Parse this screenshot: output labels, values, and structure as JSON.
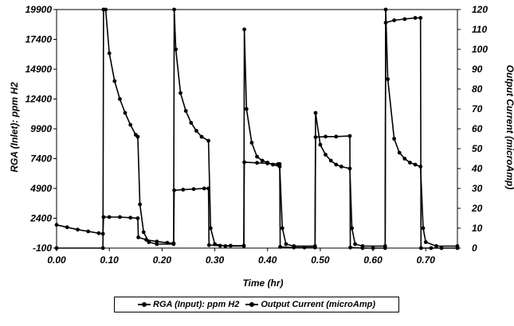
{
  "chart_data": {
    "type": "line",
    "xlabel": "Time (hr)",
    "ylabel": "RGA (Inlet): ppm H2",
    "y2label": "Output Current (microAmp)",
    "xlim": [
      0,
      0.76
    ],
    "ylim": [
      -100,
      19900
    ],
    "y2lim": [
      0,
      120
    ],
    "x_ticks": [
      "0.00",
      "0.10",
      "0.20",
      "0.30",
      "0.40",
      "0.50",
      "0.60",
      "0.70"
    ],
    "y_ticks": [
      "19900",
      "17400",
      "14900",
      "12400",
      "9900",
      "7400",
      "4900",
      "2400",
      "-100"
    ],
    "y2_ticks": [
      "120",
      "110",
      "100",
      "90",
      "80",
      "70",
      "60",
      "50",
      "40",
      "30",
      "20",
      "10",
      "0"
    ],
    "legend_position": "bottom",
    "grid": false,
    "series": [
      {
        "name": "RGA (Input): ppm H2",
        "axis": "left",
        "color": "#000000",
        "points": [
          [
            0.0,
            1850
          ],
          [
            0.02,
            1650
          ],
          [
            0.04,
            1450
          ],
          [
            0.06,
            1300
          ],
          [
            0.08,
            1150
          ],
          [
            0.088,
            1100
          ],
          [
            0.089,
            2500
          ],
          [
            0.1,
            2500
          ],
          [
            0.12,
            2500
          ],
          [
            0.14,
            2450
          ],
          [
            0.154,
            2400
          ],
          [
            0.155,
            800
          ],
          [
            0.17,
            600
          ],
          [
            0.19,
            450
          ],
          [
            0.21,
            350
          ],
          [
            0.222,
            300
          ],
          [
            0.223,
            4750
          ],
          [
            0.24,
            4800
          ],
          [
            0.26,
            4850
          ],
          [
            0.28,
            4900
          ],
          [
            0.288,
            4900
          ],
          [
            0.289,
            150
          ],
          [
            0.31,
            100
          ],
          [
            0.33,
            100
          ],
          [
            0.355,
            100
          ],
          [
            0.356,
            7100
          ],
          [
            0.38,
            7050
          ],
          [
            0.4,
            7000
          ],
          [
            0.42,
            6950
          ],
          [
            0.423,
            6950
          ],
          [
            0.424,
            0
          ],
          [
            0.45,
            -50
          ],
          [
            0.47,
            -50
          ],
          [
            0.49,
            -50
          ],
          [
            0.491,
            9200
          ],
          [
            0.51,
            9250
          ],
          [
            0.53,
            9250
          ],
          [
            0.556,
            9300
          ],
          [
            0.557,
            -50
          ],
          [
            0.58,
            -100
          ],
          [
            0.6,
            -100
          ],
          [
            0.623,
            -100
          ],
          [
            0.624,
            18800
          ],
          [
            0.64,
            19000
          ],
          [
            0.66,
            19100
          ],
          [
            0.68,
            19200
          ],
          [
            0.69,
            19200
          ],
          [
            0.691,
            -100
          ],
          [
            0.71,
            -100
          ],
          [
            0.73,
            -100
          ],
          [
            0.76,
            -100
          ]
        ]
      },
      {
        "name": "Output Current (microAmp)",
        "axis": "right",
        "color": "#000000",
        "points": [
          [
            0.0,
            0
          ],
          [
            0.088,
            0
          ],
          [
            0.089,
            120
          ],
          [
            0.093,
            120
          ],
          [
            0.1,
            98
          ],
          [
            0.11,
            84
          ],
          [
            0.12,
            75
          ],
          [
            0.13,
            68
          ],
          [
            0.14,
            62
          ],
          [
            0.15,
            57
          ],
          [
            0.154,
            56
          ],
          [
            0.158,
            22
          ],
          [
            0.165,
            8
          ],
          [
            0.175,
            3
          ],
          [
            0.19,
            2
          ],
          [
            0.222,
            2
          ],
          [
            0.223,
            120
          ],
          [
            0.226,
            100
          ],
          [
            0.235,
            78
          ],
          [
            0.245,
            69
          ],
          [
            0.255,
            63
          ],
          [
            0.265,
            59
          ],
          [
            0.275,
            56
          ],
          [
            0.288,
            54
          ],
          [
            0.292,
            10
          ],
          [
            0.3,
            2
          ],
          [
            0.32,
            1
          ],
          [
            0.355,
            1
          ],
          [
            0.356,
            110
          ],
          [
            0.36,
            70
          ],
          [
            0.37,
            53
          ],
          [
            0.38,
            46
          ],
          [
            0.39,
            44
          ],
          [
            0.4,
            43
          ],
          [
            0.41,
            42
          ],
          [
            0.423,
            41
          ],
          [
            0.428,
            10
          ],
          [
            0.435,
            2
          ],
          [
            0.45,
            1
          ],
          [
            0.49,
            1
          ],
          [
            0.491,
            68
          ],
          [
            0.5,
            52
          ],
          [
            0.51,
            47
          ],
          [
            0.52,
            44
          ],
          [
            0.53,
            42
          ],
          [
            0.54,
            41
          ],
          [
            0.556,
            40
          ],
          [
            0.56,
            10
          ],
          [
            0.566,
            2
          ],
          [
            0.58,
            1
          ],
          [
            0.623,
            1
          ],
          [
            0.624,
            120
          ],
          [
            0.628,
            85
          ],
          [
            0.64,
            55
          ],
          [
            0.65,
            48
          ],
          [
            0.66,
            45
          ],
          [
            0.67,
            43
          ],
          [
            0.68,
            42
          ],
          [
            0.69,
            41
          ],
          [
            0.695,
            10
          ],
          [
            0.7,
            3
          ],
          [
            0.72,
            1
          ],
          [
            0.76,
            1
          ]
        ]
      }
    ]
  }
}
